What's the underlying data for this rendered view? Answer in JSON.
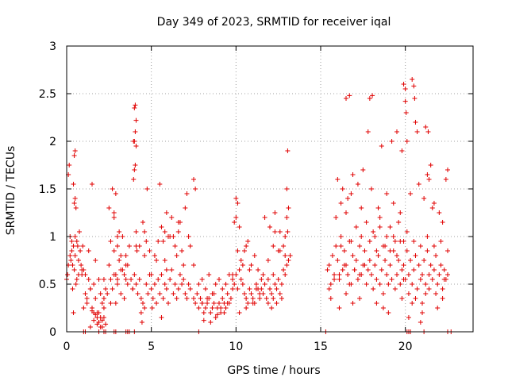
{
  "chart_data": {
    "type": "scatter",
    "title": "Day 349 of 2023, SRMTID for receiver iqal",
    "xlabel": "GPS time / hours",
    "ylabel": "SRMTID / TECUs",
    "xlim": [
      0,
      24
    ],
    "ylim": [
      0,
      3
    ],
    "xticks": [
      0,
      5,
      10,
      15,
      20
    ],
    "xtick_labels": [
      "0",
      "5",
      "10",
      "15",
      "20"
    ],
    "yticks": [
      0,
      0.5,
      1,
      1.5,
      2,
      2.5,
      3
    ],
    "ytick_labels": [
      "0",
      "0.5",
      "1",
      "1.5",
      "2",
      "2.5",
      "3"
    ],
    "grid": true,
    "marker": "+",
    "color": "#e00000",
    "series": [
      {
        "name": "SRMTID",
        "x": [
          0.0,
          0.05,
          0.1,
          0.15,
          0.2,
          0.25,
          0.3,
          0.35,
          0.4,
          0.45,
          0.5,
          0.55,
          0.6,
          0.65,
          0.7,
          0.75,
          0.8,
          0.85,
          0.9,
          0.95,
          0.45,
          0.5,
          0.55,
          0.4,
          0.45,
          0.5,
          0.35,
          0.4,
          1.0,
          1.1,
          1.2,
          1.3,
          1.4,
          1.5,
          1.6,
          1.7,
          1.8,
          1.9,
          2.0,
          2.1,
          2.2,
          2.3,
          1.1,
          1.3,
          1.5,
          1.7,
          1.9,
          2.1,
          1.4,
          1.6,
          1.8,
          2.0,
          1.0,
          2.2,
          2.5,
          2.6,
          2.7,
          2.8,
          2.9,
          3.0,
          3.1,
          3.2,
          3.3,
          3.4,
          3.5,
          3.6,
          3.7,
          3.8,
          2.6,
          2.8,
          3.0,
          3.2,
          3.4,
          2.7,
          2.9,
          3.1,
          2.8,
          3.0,
          2.9,
          3.3,
          2.5,
          3.5,
          3.6,
          3.9,
          4.0,
          4.1,
          4.2,
          4.3,
          4.4,
          4.5,
          4.6,
          4.7,
          4.8,
          4.9,
          4.0,
          4.05,
          4.1,
          4.0,
          4.05,
          4.1,
          4.05,
          4.1,
          4.15,
          3.95,
          4.0,
          4.5,
          4.6,
          4.7,
          4.4,
          4.45,
          4.6,
          5.0,
          5.1,
          5.2,
          5.3,
          5.4,
          5.5,
          5.6,
          5.7,
          5.8,
          5.9,
          6.0,
          6.1,
          6.2,
          6.3,
          6.4,
          6.5,
          6.6,
          6.7,
          6.8,
          6.9,
          7.0,
          7.1,
          7.2,
          7.3,
          5.2,
          5.4,
          5.6,
          5.8,
          6.0,
          6.2,
          6.4,
          6.6,
          6.8,
          7.0,
          5.5,
          5.9,
          6.3,
          6.7,
          7.1,
          7.5,
          7.6,
          5.05,
          5.6,
          5.9,
          4.75,
          7.5,
          7.6,
          7.7,
          7.8,
          7.9,
          8.0,
          8.1,
          8.2,
          8.3,
          8.4,
          8.5,
          8.6,
          8.7,
          8.8,
          8.9,
          9.0,
          9.1,
          9.2,
          9.3,
          9.4,
          9.5,
          9.6,
          9.7,
          9.8,
          7.8,
          8.0,
          8.2,
          8.4,
          8.6,
          8.8,
          9.0,
          9.2,
          9.4,
          9.6,
          8.1,
          8.5,
          8.9,
          9.3,
          9.8,
          9.9,
          10.0,
          10.1,
          10.2,
          10.3,
          10.4,
          10.5,
          10.6,
          10.7,
          10.8,
          10.9,
          11.0,
          11.1,
          11.2,
          11.3,
          11.4,
          11.5,
          9.9,
          10.0,
          10.1,
          10.2,
          10.0,
          10.3,
          10.5,
          10.7,
          10.9,
          11.1,
          11.3,
          10.2,
          10.6,
          11.0,
          11.4,
          11.5,
          11.6,
          11.7,
          11.8,
          11.9,
          12.0,
          12.1,
          12.2,
          12.3,
          12.4,
          12.5,
          12.6,
          12.7,
          12.8,
          12.9,
          13.0,
          13.1,
          13.2,
          11.7,
          12.0,
          12.3,
          12.6,
          12.9,
          12.1,
          12.2,
          12.5,
          12.8,
          13.0,
          13.05,
          13.1,
          11.9,
          12.4,
          12.7,
          15.4,
          15.5,
          15.6,
          15.7,
          15.8,
          15.9,
          16.0,
          16.1,
          16.2,
          16.3,
          16.4,
          16.5,
          16.6,
          16.7,
          16.8,
          16.9,
          17.0,
          17.1,
          17.2,
          17.3,
          17.4,
          17.5,
          17.6,
          17.7,
          17.8,
          17.9,
          15.6,
          15.9,
          16.2,
          16.5,
          16.8,
          17.1,
          17.4,
          17.7,
          16.0,
          16.3,
          16.6,
          16.9,
          17.2,
          17.5,
          16.1,
          16.5,
          16.9,
          17.3,
          16.5,
          16.7,
          17.8,
          18.0,
          18.1,
          18.2,
          18.3,
          18.4,
          18.5,
          18.6,
          18.7,
          18.8,
          18.9,
          19.0,
          19.1,
          19.2,
          19.3,
          19.4,
          19.5,
          19.6,
          19.7,
          19.8,
          19.9,
          18.2,
          18.5,
          18.8,
          19.1,
          19.4,
          19.7,
          18.0,
          18.4,
          18.9,
          19.3,
          19.6,
          18.3,
          18.7,
          19.0,
          19.8,
          17.9,
          18.05,
          18.6,
          19.2,
          19.5,
          19.9,
          20.0,
          20.1,
          20.2,
          20.3,
          20.4,
          20.5,
          20.6,
          20.7,
          20.8,
          20.9,
          21.0,
          21.1,
          21.2,
          21.3,
          21.4,
          21.5,
          21.6,
          21.7,
          21.8,
          21.9,
          22.0,
          22.1,
          22.2,
          22.3,
          22.4,
          22.5,
          19.8,
          19.9,
          20.0,
          20.0,
          20.05,
          20.1,
          20.4,
          20.5,
          20.55,
          20.6,
          20.7,
          21.2,
          21.3,
          21.4,
          21.5,
          21.35,
          21.6,
          22.4,
          22.5,
          20.3,
          20.8,
          21.1,
          21.7,
          22.0,
          22.2,
          20.2,
          20.9,
          21.0,
          21.9,
          0.1,
          0.2,
          0.3,
          0.5,
          0.7,
          0.9,
          0.6,
          1.2,
          1.4,
          1.6,
          1.9,
          2.2,
          2.4,
          2.8,
          3.0,
          2.6,
          3.2,
          3.5,
          3.9,
          3.95,
          4.1,
          4.3,
          4.9,
          5.3,
          5.7,
          6.1,
          6.5,
          6.9,
          7.3,
          5.0,
          5.8,
          6.6,
          7.2,
          7.5,
          8.3,
          8.7,
          9.1,
          9.5,
          8.0,
          9.8,
          10.4,
          10.8,
          11.2,
          10.1,
          10.6,
          11.6,
          11.9,
          12.2,
          12.6,
          12.9,
          12.3,
          13.0,
          13.05,
          15.5,
          15.8,
          16.1,
          16.4,
          16.7,
          17.0,
          17.3,
          17.6,
          16.2,
          16.8,
          17.4,
          17.9,
          18.3,
          18.7,
          19.1,
          19.5,
          19.9,
          18.1,
          18.5,
          18.9,
          19.3,
          19.7,
          20.1,
          20.5,
          20.9,
          21.3,
          21.7,
          22.1,
          22.5,
          20.2,
          20.6,
          21.0,
          21.4,
          21.8,
          22.2,
          20.4,
          21.2,
          22.3,
          1.9,
          2.3,
          1.7,
          2.1,
          1.5,
          2.0,
          2.2,
          1.8,
          1.0,
          1.1,
          1.9,
          2.2,
          2.3,
          2.8,
          2.9,
          3.5,
          3.6,
          3.7,
          4.0,
          7.8,
          15.3,
          20.1,
          20.2,
          20.3,
          21.1,
          22.5,
          22.7
        ],
        "y": [
          0.55,
          0.6,
          1.65,
          1.75,
          1.0,
          0.75,
          0.85,
          0.7,
          0.9,
          0.65,
          0.8,
          0.5,
          0.95,
          0.9,
          0.6,
          1.05,
          0.85,
          0.7,
          0.65,
          0.9,
          1.35,
          1.4,
          1.3,
          1.55,
          1.85,
          1.9,
          0.45,
          0.2,
          0.65,
          0.4,
          0.3,
          0.55,
          0.45,
          0.25,
          0.5,
          0.35,
          0.15,
          0.2,
          0.4,
          0.3,
          0.55,
          0.45,
          0.6,
          0.85,
          1.55,
          0.75,
          0.1,
          0.05,
          0.05,
          0.12,
          0.08,
          0.15,
          0.25,
          0.35,
          0.7,
          0.55,
          0.45,
          0.85,
          0.6,
          0.5,
          0.75,
          0.4,
          0.65,
          0.35,
          0.7,
          0.5,
          0.9,
          0.55,
          0.95,
          1.2,
          1.0,
          0.8,
          0.6,
          1.5,
          1.45,
          1.05,
          1.25,
          0.9,
          0.3,
          1.0,
          1.3,
          0.8,
          0.7,
          0.45,
          0.6,
          0.5,
          0.4,
          0.55,
          0.35,
          0.3,
          0.25,
          0.5,
          0.4,
          0.6,
          2.0,
          2.1,
          1.95,
          2.35,
          2.38,
          2.22,
          1.75,
          0.9,
          0.85,
          1.6,
          1.7,
          1.15,
          1.05,
          0.95,
          0.2,
          0.1,
          0.8,
          0.45,
          0.35,
          0.5,
          0.3,
          0.55,
          0.4,
          0.6,
          0.35,
          0.5,
          0.45,
          0.3,
          0.55,
          0.65,
          0.4,
          0.5,
          0.35,
          0.45,
          0.6,
          0.5,
          0.55,
          0.4,
          0.35,
          0.5,
          0.45,
          0.8,
          0.95,
          1.1,
          0.75,
          1.0,
          1.2,
          0.9,
          1.05,
          0.85,
          1.3,
          1.55,
          1.25,
          1.0,
          1.15,
          1.45,
          1.6,
          1.5,
          0.25,
          0.15,
          0.65,
          1.5,
          0.35,
          0.3,
          0.4,
          0.25,
          0.35,
          0.3,
          0.2,
          0.25,
          0.3,
          0.35,
          0.2,
          0.25,
          0.3,
          0.15,
          0.25,
          0.3,
          0.2,
          0.35,
          0.3,
          0.25,
          0.4,
          0.3,
          0.35,
          0.45,
          0.5,
          0.55,
          0.45,
          0.6,
          0.4,
          0.5,
          0.55,
          0.45,
          0.5,
          0.6,
          0.12,
          0.1,
          0.18,
          0.2,
          0.55,
          0.5,
          0.6,
          0.45,
          0.65,
          0.55,
          0.5,
          0.4,
          0.35,
          0.3,
          0.45,
          0.4,
          0.35,
          0.3,
          0.5,
          0.45,
          0.4,
          0.55,
          1.15,
          1.2,
          1.35,
          1.1,
          1.4,
          0.75,
          0.85,
          0.95,
          0.7,
          0.8,
          0.65,
          0.2,
          0.25,
          0.3,
          0.35,
          0.45,
          0.4,
          0.5,
          0.35,
          0.55,
          0.45,
          0.4,
          0.6,
          0.5,
          0.45,
          0.55,
          0.4,
          0.5,
          0.65,
          0.6,
          0.7,
          0.75,
          0.8,
          1.2,
          1.1,
          1.25,
          1.05,
          1.0,
          0.25,
          0.35,
          0.85,
          0.9,
          1.5,
          1.9,
          1.3,
          0.3,
          0.3,
          0.35,
          0.65,
          0.7,
          0.5,
          0.8,
          0.6,
          0.9,
          0.75,
          0.55,
          1.0,
          0.65,
          0.85,
          0.7,
          0.6,
          0.95,
          0.5,
          0.8,
          0.65,
          0.75,
          0.55,
          0.9,
          0.6,
          0.7,
          0.85,
          0.5,
          0.65,
          0.75,
          0.35,
          1.2,
          1.35,
          1.25,
          1.45,
          1.1,
          1.3,
          1.15,
          1.6,
          1.5,
          1.4,
          1.65,
          1.55,
          1.7,
          0.25,
          0.4,
          0.3,
          0.35,
          2.45,
          2.48,
          2.1,
          0.6,
          0.45,
          0.7,
          0.55,
          0.8,
          0.5,
          0.65,
          0.4,
          0.75,
          0.6,
          0.5,
          0.7,
          0.55,
          0.85,
          0.45,
          0.6,
          0.75,
          0.5,
          0.65,
          0.55,
          1.0,
          1.2,
          0.9,
          1.1,
          0.95,
          1.25,
          1.5,
          1.3,
          1.45,
          1.35,
          1.15,
          0.3,
          0.25,
          0.2,
          0.35,
          2.45,
          2.48,
          1.95,
          2.0,
          2.1,
          0.7,
          0.55,
          0.85,
          0.6,
          0.75,
          0.5,
          0.65,
          0.8,
          0.45,
          0.7,
          0.55,
          0.6,
          0.75,
          0.5,
          0.85,
          0.6,
          0.7,
          0.55,
          0.65,
          0.8,
          0.5,
          0.6,
          0.7,
          0.45,
          0.65,
          0.55,
          0.6,
          1.9,
          2.6,
          2.55,
          2.42,
          2.3,
          2.0,
          2.65,
          2.58,
          2.45,
          2.2,
          2.1,
          2.15,
          1.65,
          1.6,
          1.75,
          2.1,
          1.3,
          1.6,
          1.7,
          1.45,
          1.55,
          1.4,
          1.35,
          1.25,
          1.15,
          0.15,
          0.1,
          0.2,
          0.25,
          0.7,
          0.8,
          0.95,
          1.0,
          0.75,
          0.6,
          0.55,
          0.35,
          0.45,
          0.2,
          0.55,
          0.25,
          0.4,
          0.6,
          0.55,
          0.3,
          0.65,
          0.55,
          0.45,
          2.0,
          1.05,
          0.9,
          0.85,
          0.75,
          0.95,
          1.0,
          0.8,
          0.7,
          0.9,
          0.6,
          1.05,
          1.15,
          1.0,
          0.7,
          0.35,
          0.4,
          0.25,
          0.3,
          0.3,
          0.6,
          0.7,
          0.65,
          0.45,
          0.85,
          0.9,
          0.6,
          0.75,
          0.9,
          0.85,
          0.8,
          1.05,
          1.2,
          1.05,
          0.45,
          0.55,
          0.6,
          0.7,
          0.5,
          0.65,
          0.6,
          0.7,
          0.9,
          0.95,
          1.0,
          0.95,
          0.85,
          0.9,
          0.85,
          0.8,
          0.95,
          1.05,
          1.1,
          1.0,
          1.0,
          0.95,
          1.05,
          0.95,
          0.9,
          1.0,
          0.9,
          0.95,
          0.85,
          0.4,
          0.35,
          0.3,
          0.45,
          0.4,
          0.35,
          0.3,
          0.4,
          0.55,
          0.1,
          0.08,
          0.18,
          0.12,
          0.22,
          0.05,
          0.15,
          0.2,
          0.0,
          0.0,
          0.0,
          0.0,
          0.0,
          0.0,
          0.0,
          0.0,
          0.0,
          0.0,
          0.0,
          0.0,
          0.0,
          0.0,
          0.0,
          0.0,
          0.0,
          0.0,
          0.0
        ]
      }
    ]
  }
}
